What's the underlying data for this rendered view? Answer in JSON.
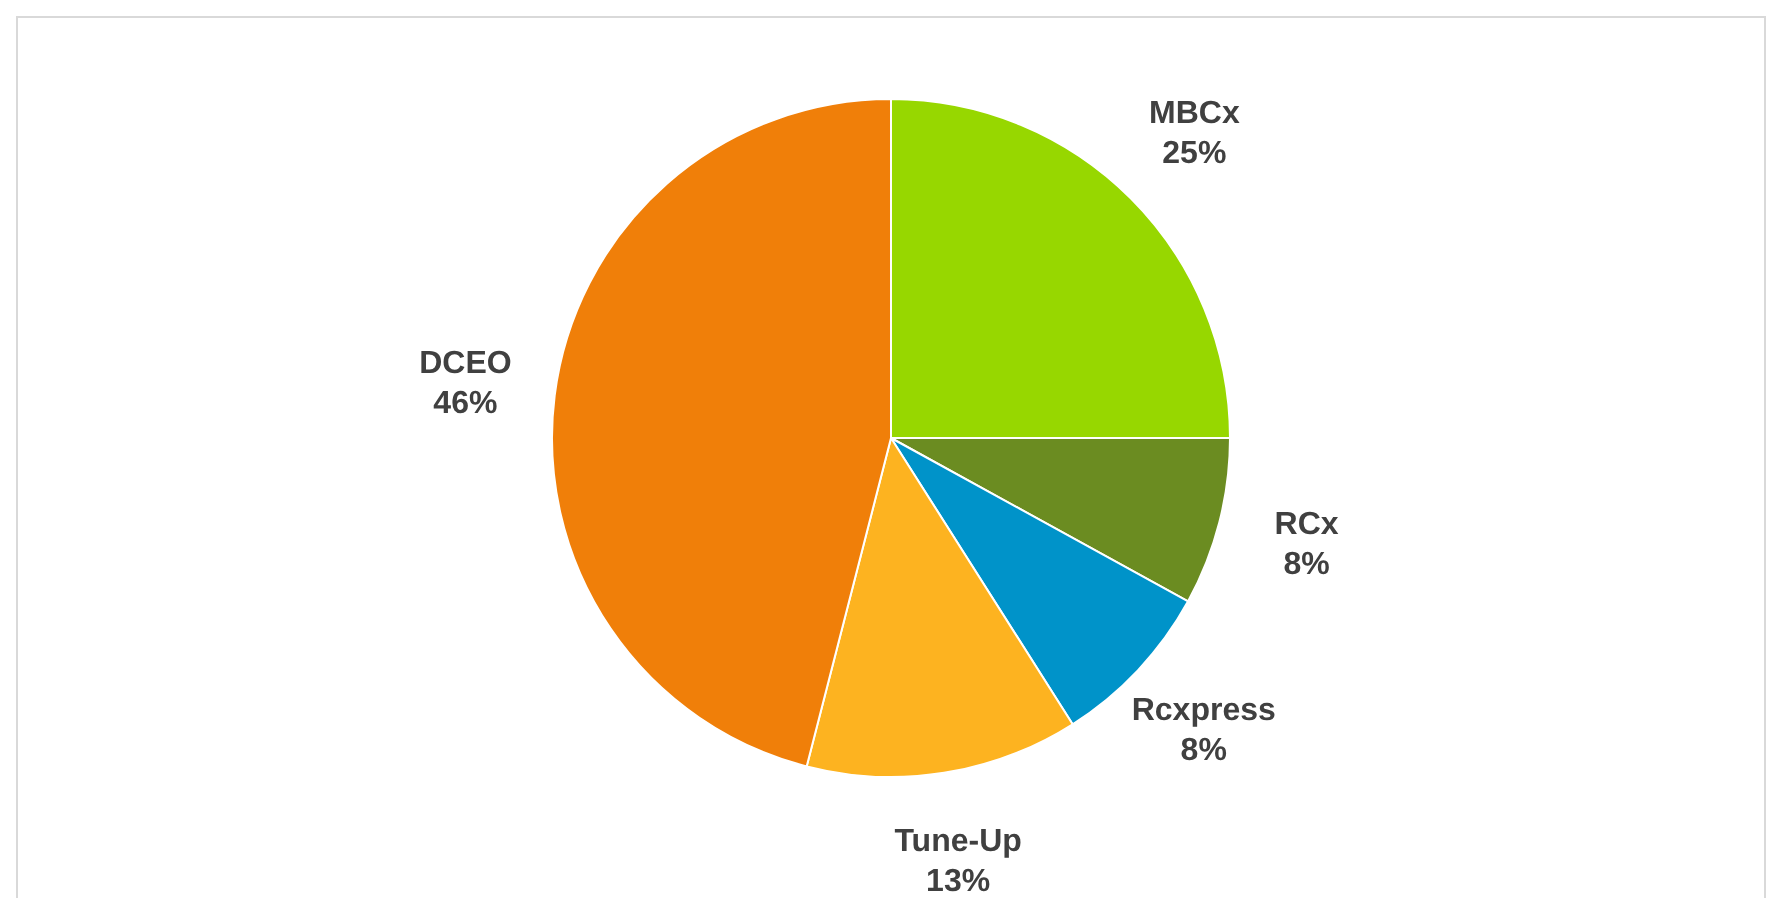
{
  "chart_data": {
    "type": "pie",
    "categories": [
      "MBCx",
      "RCx",
      "Rcxpress",
      "Tune-Up",
      "DCEO"
    ],
    "values": [
      25,
      8,
      8,
      13,
      46
    ],
    "colors": [
      "#97d700",
      "#6b8c21",
      "#0093c9",
      "#fdb320",
      "#f07f09"
    ],
    "value_labels": [
      "25%",
      "8%",
      "8%",
      "13%",
      "46%"
    ],
    "legend": false
  }
}
